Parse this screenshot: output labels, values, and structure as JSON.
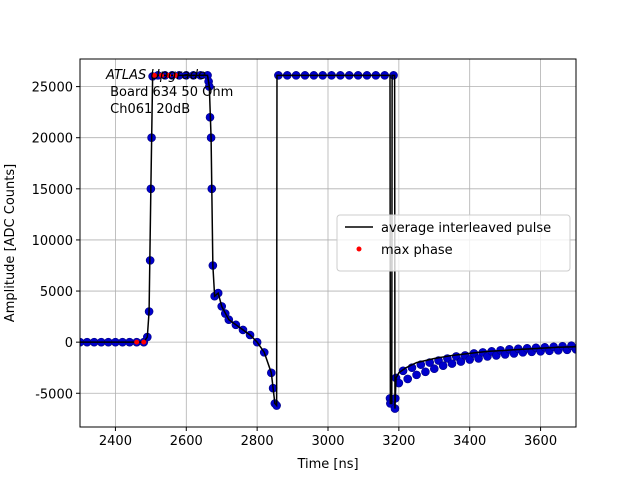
{
  "chart_data": {
    "type": "line",
    "xlabel": "Time [ns]",
    "ylabel": "Amplitude [ADC Counts]",
    "annotation": [
      "ATLAS Upgrade",
      " Board 634 50 Ohm",
      " Ch061 20dB"
    ],
    "xlim": [
      2300,
      3700
    ],
    "ylim": [
      -8300,
      27700
    ],
    "xticks": [
      2400,
      2600,
      2800,
      3000,
      3200,
      3400,
      3600
    ],
    "yticks": [
      -5000,
      0,
      5000,
      10000,
      15000,
      20000,
      25000
    ],
    "grid": true,
    "legend": "center right",
    "series": [
      {
        "name": "average interleaved pulse",
        "kind": "line",
        "color": "#000000",
        "x": [
          2300,
          2480,
          2490,
          2495,
          2500,
          2505,
          2510,
          2660,
          2665,
          2670,
          2675,
          2680,
          2690,
          2700,
          2720,
          2740,
          2760,
          2780,
          2800,
          2820,
          2840,
          2850,
          2855,
          2856,
          3175,
          3176,
          3180,
          3181,
          3188,
          3189,
          3192,
          3200,
          3220,
          3250,
          3300,
          3350,
          3400,
          3450,
          3500,
          3550,
          3600,
          3650,
          3700
        ],
        "values": [
          0,
          0,
          500,
          3000,
          15000,
          26000,
          26100,
          26100,
          25000,
          20000,
          7500,
          4500,
          4800,
          3500,
          2200,
          1700,
          1200,
          700,
          0,
          -1000,
          -3000,
          -6000,
          -6200,
          26100,
          26100,
          -6000,
          -6000,
          26100,
          26100,
          -6500,
          -3500,
          -3000,
          -2500,
          -2000,
          -1600,
          -1300,
          -1100,
          -900,
          -800,
          -700,
          -600,
          -500,
          -450
        ]
      },
      {
        "kind": "scatter",
        "color": "#0000cc",
        "x": [
          2300,
          2320,
          2340,
          2360,
          2380,
          2400,
          2420,
          2440,
          2460,
          2480,
          2490,
          2495,
          2498,
          2500,
          2502,
          2505,
          2520,
          2540,
          2560,
          2580,
          2600,
          2620,
          2640,
          2660,
          2663,
          2665,
          2667,
          2670,
          2672,
          2675,
          2680,
          2690,
          2700,
          2710,
          2720,
          2740,
          2760,
          2780,
          2800,
          2820,
          2840,
          2845,
          2850,
          2855,
          2860,
          2885,
          2910,
          2935,
          2960,
          2985,
          3010,
          3035,
          3060,
          3085,
          3110,
          3135,
          3160,
          3185,
          3175,
          3176,
          3189,
          3190,
          3192,
          3200,
          3212,
          3225,
          3237,
          3250,
          3262,
          3275,
          3287,
          3300,
          3312,
          3325,
          3337,
          3350,
          3362,
          3375,
          3387,
          3400,
          3412,
          3425,
          3437,
          3450,
          3462,
          3475,
          3487,
          3500,
          3512,
          3525,
          3537,
          3550,
          3562,
          3575,
          3587,
          3600,
          3612,
          3625,
          3637,
          3650,
          3662,
          3675,
          3687,
          3700
        ],
        "values": [
          0,
          0,
          0,
          0,
          0,
          0,
          0,
          0,
          0,
          0,
          500,
          3000,
          8000,
          15000,
          20000,
          26000,
          26100,
          26100,
          26100,
          26100,
          26100,
          26100,
          26100,
          26100,
          25500,
          25000,
          22000,
          20000,
          15000,
          7500,
          4500,
          4800,
          3500,
          2800,
          2200,
          1700,
          1200,
          700,
          0,
          -1000,
          -3000,
          -4500,
          -6000,
          -6200,
          26100,
          26100,
          26100,
          26100,
          26100,
          26100,
          26100,
          26100,
          26100,
          26100,
          26100,
          26100,
          26100,
          26100,
          -5500,
          -6000,
          -6500,
          -5500,
          -3500,
          -4000,
          -2800,
          -3600,
          -2500,
          -3200,
          -2200,
          -2900,
          -2000,
          -2600,
          -1800,
          -2300,
          -1600,
          -2100,
          -1400,
          -1900,
          -1300,
          -1700,
          -1100,
          -1600,
          -1000,
          -1400,
          -900,
          -1300,
          -800,
          -1200,
          -700,
          -1100,
          -650,
          -1000,
          -600,
          -950,
          -550,
          -900,
          -500,
          -850,
          -450,
          -800,
          -400,
          -750,
          -350,
          -700
        ]
      },
      {
        "name": "max phase",
        "kind": "scatter",
        "color": "#ff0000",
        "x": [
          2460,
          2480,
          2510,
          2530,
          2550,
          2570
        ],
        "values": [
          0,
          0,
          26100,
          26100,
          26100,
          26100
        ]
      }
    ]
  }
}
